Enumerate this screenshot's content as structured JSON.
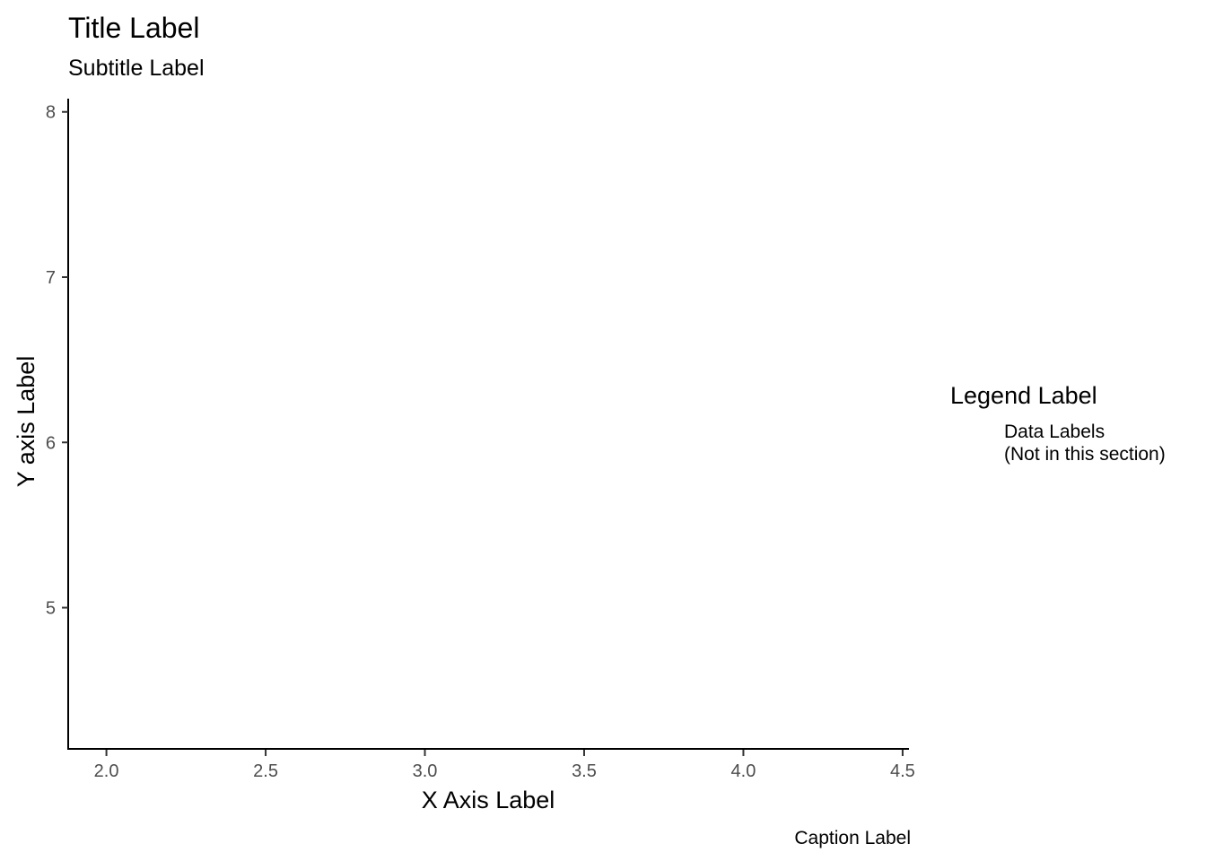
{
  "chart_data": {
    "type": "scatter",
    "title": "Title Label",
    "subtitle": "Subtitle Label",
    "xlabel": "X Axis Label",
    "ylabel": "Y axis Label",
    "caption": "Caption Label",
    "xlim": [
      1.88,
      4.52
    ],
    "ylim": [
      4.14,
      8.08
    ],
    "x_ticks": [
      2.0,
      2.5,
      3.0,
      3.5,
      4.0,
      4.5
    ],
    "x_tick_labels": [
      "2.0",
      "2.5",
      "3.0",
      "3.5",
      "4.0",
      "4.5"
    ],
    "y_ticks": [
      5,
      6,
      7,
      8
    ],
    "y_tick_labels": [
      "5",
      "6",
      "7",
      "8"
    ],
    "series": [],
    "grid": false,
    "legend": {
      "title": "Legend Label",
      "position": "right",
      "entries": [
        "Data Labels",
        "(Not in this section)"
      ]
    }
  },
  "colors": {
    "background": "#ffffff",
    "axis": "#000000",
    "tick_text": "#4d4d4d",
    "text": "#000000"
  }
}
